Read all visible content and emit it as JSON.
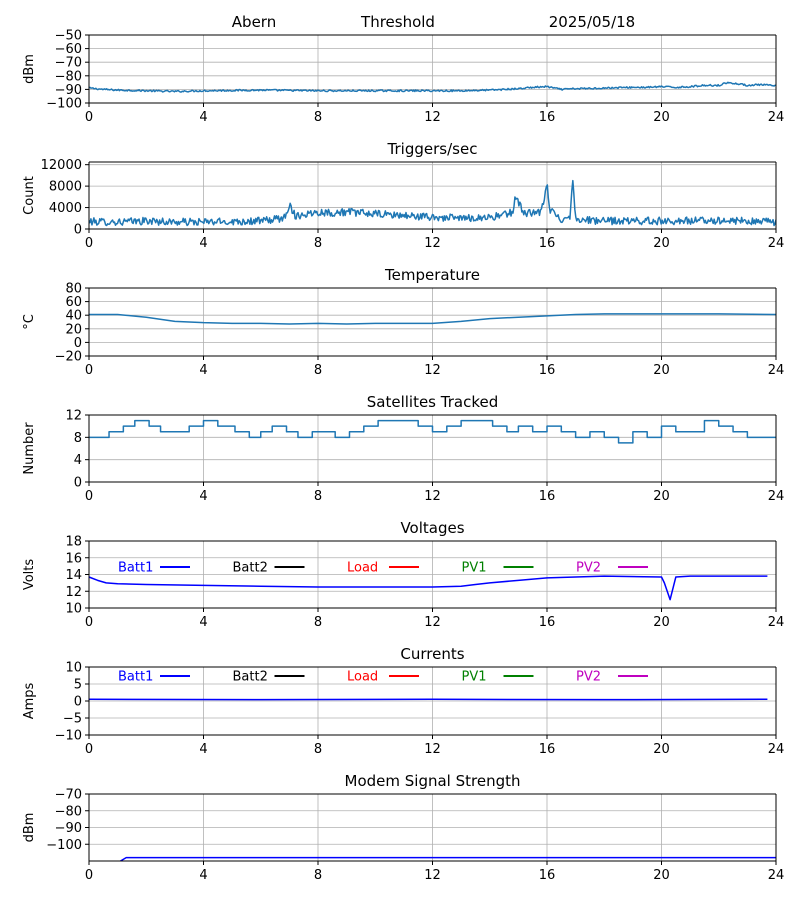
{
  "header": {
    "station": "Abern",
    "mode": "Threshold",
    "date": "2025/05/18"
  },
  "colors": {
    "series_default": "#1f77b4",
    "grid": "#b0b0b0",
    "batt1": "#0000ff",
    "batt2": "#000000",
    "load": "#ff0000",
    "pv1": "#008000",
    "pv2": "#bf00bf"
  },
  "chart_data": [
    {
      "type": "line",
      "title": "",
      "ylabel": "dBm",
      "xlim": [
        0,
        24
      ],
      "ylim": [
        -100,
        -50
      ],
      "xticks": [
        0,
        4,
        8,
        12,
        16,
        20,
        24
      ],
      "yticks": [
        -100,
        -90,
        -80,
        -70,
        -60,
        -50
      ],
      "grid": true,
      "series": [
        {
          "color": "#1f77b4",
          "noise": 0.6,
          "x": [
            0,
            0.5,
            1,
            2,
            3,
            4,
            6,
            8,
            10,
            12,
            13,
            14,
            15,
            15.5,
            16,
            16.5,
            17,
            18,
            19,
            19.5,
            20,
            20.5,
            21,
            21.5,
            22,
            22.3,
            22.7,
            23,
            23.5,
            24
          ],
          "y": [
            -89,
            -90,
            -90.5,
            -91,
            -91.5,
            -91,
            -90.5,
            -91,
            -91,
            -91,
            -91,
            -90.5,
            -89.5,
            -88.5,
            -88,
            -90,
            -89.5,
            -89,
            -88.5,
            -88.5,
            -88,
            -88.5,
            -88,
            -87,
            -87,
            -85,
            -86,
            -87,
            -86.5,
            -87.5
          ]
        }
      ]
    },
    {
      "type": "line",
      "title": "Triggers/sec",
      "ylabel": "Count",
      "xlim": [
        0,
        24
      ],
      "ylim": [
        0,
        12500
      ],
      "xticks": [
        0,
        4,
        8,
        12,
        16,
        20,
        24
      ],
      "yticks": [
        0,
        4000,
        8000,
        12000
      ],
      "grid": true,
      "series": [
        {
          "color": "#1f77b4",
          "noise": 700,
          "x": [
            0,
            1,
            2,
            3,
            4,
            5,
            6,
            6.8,
            7,
            7.2,
            7.5,
            8,
            8.5,
            9,
            9.5,
            10,
            11,
            12,
            13,
            14,
            14.5,
            14.8,
            14.9,
            15.2,
            15.5,
            15.8,
            16,
            16.1,
            16.5,
            16.8,
            16.9,
            17,
            17.5,
            18,
            20,
            22,
            24
          ],
          "y": [
            1400,
            1300,
            1500,
            1300,
            1300,
            1400,
            1500,
            2000,
            4500,
            2500,
            2700,
            3200,
            3000,
            3200,
            3000,
            2800,
            2500,
            2200,
            2000,
            2200,
            2600,
            3200,
            6000,
            3000,
            3000,
            3000,
            8500,
            3500,
            1800,
            2500,
            8800,
            2000,
            1600,
            1500,
            1500,
            1600,
            1300
          ]
        }
      ]
    },
    {
      "type": "line",
      "title": "Temperature",
      "ylabel": "°C",
      "xlim": [
        0,
        24
      ],
      "ylim": [
        -20,
        80
      ],
      "xticks": [
        0,
        4,
        8,
        12,
        16,
        20,
        24
      ],
      "yticks": [
        -20,
        0,
        20,
        40,
        60,
        80
      ],
      "grid": true,
      "series": [
        {
          "color": "#1f77b4",
          "noise": 0,
          "x": [
            0,
            1,
            2,
            3,
            4,
            5,
            6,
            7,
            8,
            9,
            10,
            11,
            12,
            13,
            14,
            15,
            16,
            17,
            18,
            20,
            22,
            24
          ],
          "y": [
            41,
            41,
            37,
            31,
            29,
            28,
            28,
            27,
            28,
            27,
            28,
            28,
            28,
            31,
            35,
            37,
            39,
            41,
            42,
            42,
            42,
            41
          ]
        }
      ]
    },
    {
      "type": "line",
      "title": "Satellites Tracked",
      "ylabel": "Number",
      "xlim": [
        0,
        24
      ],
      "ylim": [
        0,
        12
      ],
      "xticks": [
        0,
        4,
        8,
        12,
        16,
        20,
        24
      ],
      "yticks": [
        0,
        4,
        8,
        12
      ],
      "grid": true,
      "step": true,
      "series": [
        {
          "color": "#1f77b4",
          "noise": 0,
          "x": [
            0,
            0.4,
            0.7,
            1.2,
            1.6,
            2.1,
            2.5,
            3,
            3.5,
            4,
            4.5,
            5.1,
            5.6,
            6,
            6.4,
            6.9,
            7.3,
            7.8,
            8.2,
            8.6,
            9.1,
            9.6,
            10.1,
            10.6,
            11,
            11.5,
            12,
            12.5,
            13,
            13.6,
            14.1,
            14.6,
            15,
            15.5,
            16,
            16.5,
            17,
            17.5,
            18,
            18.5,
            19,
            19.5,
            20,
            20.5,
            21,
            21.5,
            22,
            22.5,
            23,
            23.5
          ],
          "y": [
            8,
            8,
            9,
            10,
            11,
            10,
            9,
            9,
            10,
            11,
            10,
            9,
            8,
            9,
            10,
            9,
            8,
            9,
            9,
            8,
            9,
            10,
            11,
            11,
            11,
            10,
            9,
            10,
            11,
            11,
            10,
            9,
            10,
            9,
            10,
            9,
            8,
            9,
            8,
            7,
            9,
            8,
            10,
            9,
            9,
            11,
            10,
            9,
            8,
            8
          ]
        }
      ]
    },
    {
      "type": "line",
      "title": "Voltages",
      "ylabel": "Volts",
      "xlim": [
        0,
        24
      ],
      "ylim": [
        10,
        18
      ],
      "xticks": [
        0,
        4,
        8,
        12,
        16,
        20,
        24
      ],
      "yticks": [
        10,
        12,
        14,
        16,
        18
      ],
      "grid": true,
      "legend": [
        "Batt1",
        "Batt2",
        "Load",
        "PV1",
        "PV2"
      ],
      "series": [
        {
          "name": "Batt1",
          "color": "#0000ff",
          "noise": 0,
          "x": [
            0,
            0.3,
            0.6,
            1,
            2,
            4,
            6,
            8,
            10,
            12,
            13,
            13.5,
            14,
            15,
            16,
            18,
            20,
            20.1,
            20.3,
            20.5,
            21,
            23.7
          ],
          "y": [
            13.7,
            13.3,
            13.0,
            12.9,
            12.8,
            12.7,
            12.6,
            12.5,
            12.5,
            12.5,
            12.6,
            12.8,
            13.0,
            13.3,
            13.6,
            13.8,
            13.7,
            13.0,
            11.0,
            13.7,
            13.8,
            13.8
          ]
        }
      ]
    },
    {
      "type": "line",
      "title": "Currents",
      "ylabel": "Amps",
      "xlim": [
        0,
        24
      ],
      "ylim": [
        -10,
        10
      ],
      "xticks": [
        0,
        4,
        8,
        12,
        16,
        20,
        24
      ],
      "yticks": [
        -10,
        -5,
        0,
        5,
        10
      ],
      "grid": true,
      "legend": [
        "Batt1",
        "Batt2",
        "Load",
        "PV1",
        "PV2"
      ],
      "series": [
        {
          "name": "Batt1",
          "color": "#0000ff",
          "noise": 0,
          "x": [
            0,
            6,
            12,
            18,
            23.7
          ],
          "y": [
            0.5,
            0.4,
            0.5,
            0.4,
            0.5
          ]
        }
      ]
    },
    {
      "type": "line",
      "title": "Modem Signal Strength",
      "ylabel": "dBm",
      "xlim": [
        0,
        24
      ],
      "ylim": [
        -110,
        -70
      ],
      "xticks": [
        0,
        4,
        8,
        12,
        16,
        20,
        24
      ],
      "yticks": [
        -100,
        -90,
        -80,
        -70
      ],
      "grid": true,
      "series": [
        {
          "color": "#0000ff",
          "noise": 0,
          "x": [
            1.1,
            1.3,
            24
          ],
          "y": [
            -110,
            -108,
            -108
          ]
        }
      ]
    }
  ]
}
